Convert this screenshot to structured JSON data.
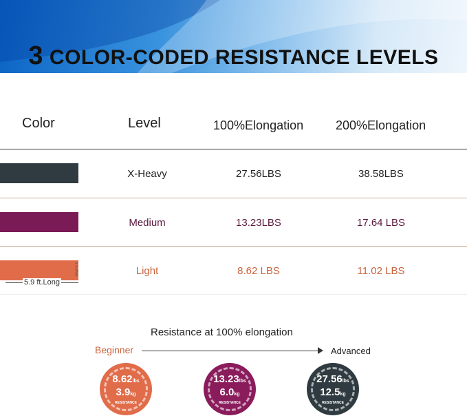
{
  "title": {
    "number": "3",
    "text": "COLOR-CODED RESISTANCE LEVELS"
  },
  "headers": [
    "Color",
    "Level",
    "100%Elongation",
    "200%Elongation"
  ],
  "rows": [
    {
      "color": "#2f3b40",
      "level": "X-Heavy",
      "e100": "27.56LBS",
      "e200": "38.58LBS",
      "text_color": "#222222"
    },
    {
      "color": "#7b1b56",
      "level": "Medium",
      "e100": "13.23LBS",
      "e200": "17.64 LBS",
      "text_color": "#5a1a3e"
    },
    {
      "color": "#e06c4a",
      "level": "Light",
      "e100": "8.62 LBS",
      "e200": "11.02 LBS",
      "text_color": "#c9643e"
    }
  ],
  "dimensions": {
    "length": "5.9 ft.Long",
    "width": "6 in.Wide"
  },
  "progression": {
    "title": "Resistance at 100% elongation",
    "start": "Beginner",
    "end": "Advanced"
  },
  "circles": [
    {
      "color": "#e06c4a",
      "lbs": "8.62",
      "kg": "3.9",
      "lbs_unit": "lbs",
      "kg_unit": "kg",
      "label": "RESISTANCE"
    },
    {
      "color": "#8a1c5c",
      "lbs": "13.23",
      "kg": "6.0",
      "lbs_unit": "lbs",
      "kg_unit": "kg",
      "label": "RESISTANCE"
    },
    {
      "color": "#2f3b40",
      "lbs": "27.56",
      "kg": "12.5",
      "lbs_unit": "lbs",
      "kg_unit": "kg",
      "label": "RESISTANCE"
    }
  ]
}
